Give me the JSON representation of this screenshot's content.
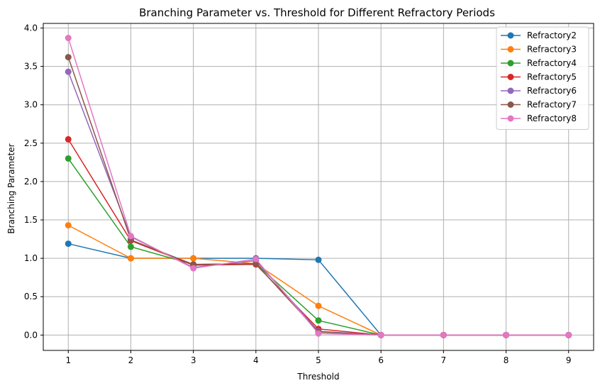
{
  "chart_data": {
    "type": "line",
    "title": "Branching Parameter vs. Threshold for Different Refractory Periods",
    "xlabel": "Threshold",
    "ylabel": "Branching Parameter",
    "x": [
      1,
      2,
      3,
      4,
      5,
      6,
      7,
      8,
      9
    ],
    "xlim": [
      0.6,
      9.4
    ],
    "ylim": [
      -0.2,
      4.06
    ],
    "xticks": [
      "1",
      "2",
      "3",
      "4",
      "5",
      "6",
      "7",
      "8",
      "9"
    ],
    "yticks": [
      "0.0",
      "0.5",
      "1.0",
      "1.5",
      "2.0",
      "2.5",
      "3.0",
      "3.5",
      "4.0"
    ],
    "grid": true,
    "legend_position": "top-right",
    "series": [
      {
        "name": "Refractory2",
        "color": "#1f77b4",
        "values": [
          1.19,
          1.0,
          1.0,
          1.0,
          0.98,
          0.0,
          0.0,
          0.0,
          0.0
        ]
      },
      {
        "name": "Refractory3",
        "color": "#ff7f0e",
        "values": [
          1.43,
          1.0,
          1.0,
          0.93,
          0.38,
          0.0,
          0.0,
          0.0,
          0.0
        ]
      },
      {
        "name": "Refractory4",
        "color": "#2ca02c",
        "values": [
          2.3,
          1.15,
          0.92,
          0.93,
          0.19,
          0.0,
          0.0,
          0.0,
          0.0
        ]
      },
      {
        "name": "Refractory5",
        "color": "#d62728",
        "values": [
          2.55,
          1.23,
          0.91,
          0.92,
          0.08,
          0.0,
          0.0,
          0.0,
          0.0
        ]
      },
      {
        "name": "Refractory6",
        "color": "#9467bd",
        "values": [
          3.43,
          1.28,
          0.88,
          0.97,
          0.05,
          0.0,
          0.0,
          0.0,
          0.0
        ]
      },
      {
        "name": "Refractory7",
        "color": "#8c564b",
        "values": [
          3.62,
          1.24,
          0.92,
          0.93,
          0.04,
          0.0,
          0.0,
          0.0,
          0.0
        ]
      },
      {
        "name": "Refractory8",
        "color": "#e377c2",
        "values": [
          3.87,
          1.29,
          0.87,
          0.99,
          0.02,
          0.0,
          0.0,
          0.0,
          0.0
        ]
      }
    ]
  }
}
